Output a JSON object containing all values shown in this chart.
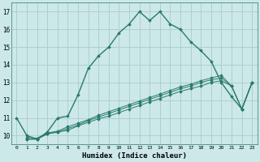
{
  "xlabel": "Humidex (Indice chaleur)",
  "bg_color": "#cce8e8",
  "grid_color": "#aacccc",
  "line_color": "#2a7a6a",
  "xlim": [
    -0.5,
    23.5
  ],
  "ylim": [
    9.5,
    17.5
  ],
  "xticks": [
    0,
    1,
    2,
    3,
    4,
    5,
    6,
    7,
    8,
    9,
    10,
    11,
    12,
    13,
    14,
    15,
    16,
    17,
    18,
    19,
    20,
    21,
    22,
    23
  ],
  "yticks": [
    10,
    11,
    12,
    13,
    14,
    15,
    16,
    17
  ],
  "line1_x": [
    0,
    1,
    2,
    3,
    4,
    5,
    6,
    7,
    8,
    9,
    10,
    11,
    12,
    13,
    14,
    15,
    16,
    17,
    18,
    19,
    20,
    21,
    22,
    23
  ],
  "line1_y": [
    11.0,
    10.0,
    9.8,
    10.2,
    11.0,
    11.1,
    12.3,
    13.8,
    14.5,
    15.0,
    15.8,
    16.3,
    17.0,
    16.5,
    17.0,
    16.3,
    16.0,
    15.3,
    14.8,
    14.2,
    13.0,
    12.2,
    11.5,
    13.0
  ],
  "line2_x": [
    1,
    2,
    3,
    4,
    5,
    6,
    7,
    8,
    9,
    10,
    11,
    12,
    13,
    14,
    15,
    16,
    17,
    18,
    19,
    20,
    21,
    22,
    23
  ],
  "line2_y": [
    9.8,
    9.8,
    10.1,
    10.2,
    10.3,
    10.55,
    10.75,
    10.95,
    11.1,
    11.3,
    11.5,
    11.7,
    11.9,
    12.1,
    12.3,
    12.5,
    12.65,
    12.8,
    13.0,
    13.1,
    12.8,
    11.5,
    13.0
  ],
  "line3_x": [
    1,
    2,
    3,
    4,
    5,
    6,
    7,
    8,
    9,
    10,
    11,
    12,
    13,
    14,
    15,
    16,
    17,
    18,
    19,
    20,
    21,
    22,
    23
  ],
  "line3_y": [
    9.8,
    9.8,
    10.1,
    10.2,
    10.4,
    10.6,
    10.85,
    11.05,
    11.25,
    11.45,
    11.65,
    11.85,
    12.05,
    12.25,
    12.45,
    12.65,
    12.8,
    13.0,
    13.15,
    13.25,
    12.8,
    11.5,
    13.0
  ],
  "line4_x": [
    1,
    2,
    3,
    4,
    5,
    6,
    7,
    8,
    9,
    10,
    11,
    12,
    13,
    14,
    15,
    16,
    17,
    18,
    19,
    20,
    21,
    22,
    23
  ],
  "line4_y": [
    9.9,
    9.85,
    10.15,
    10.25,
    10.5,
    10.7,
    10.9,
    11.15,
    11.35,
    11.55,
    11.75,
    11.95,
    12.15,
    12.35,
    12.55,
    12.75,
    12.9,
    13.1,
    13.25,
    13.4,
    12.8,
    11.5,
    13.0
  ]
}
